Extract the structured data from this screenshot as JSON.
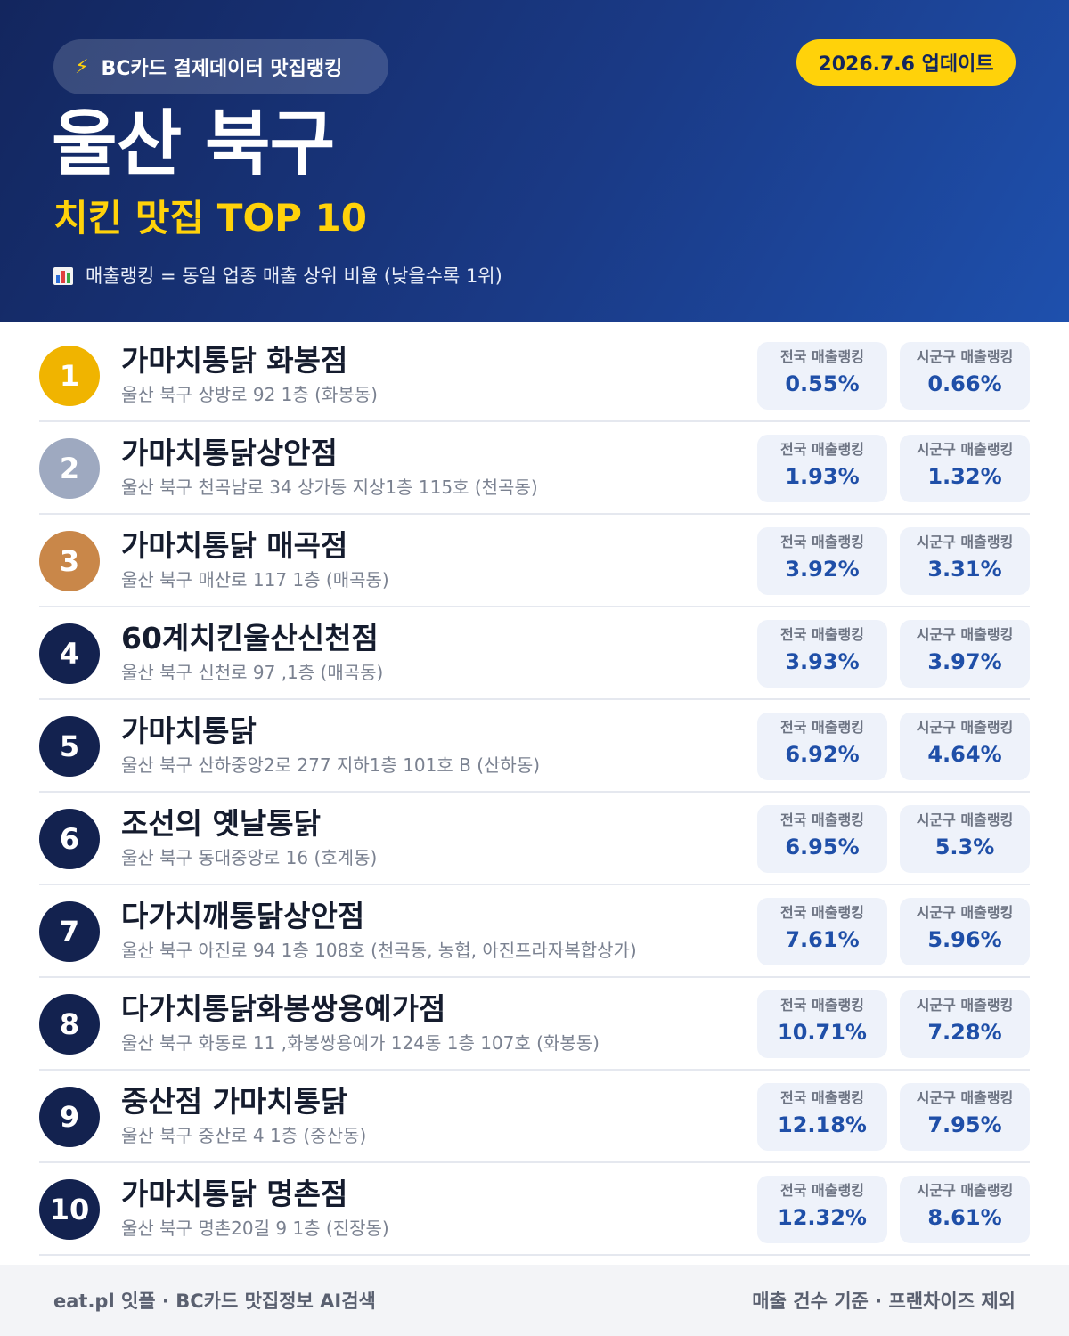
{
  "header": {
    "source_icon": "lightning-bolt-icon",
    "source_label": "BC카드 결제데이터 맛집랭킹",
    "update_label": "2026.7.6 업데이트",
    "region": "울산 북구",
    "subtitle": "치킨 맛집 TOP 10",
    "legend_icon": "bar-chart-icon",
    "legend_text": "매출랭킹 = 동일 업종 매출 상위 비율 (낮을수록 1위)"
  },
  "colors": {
    "header_bg": "#1a3a86",
    "accent_yellow": "#ffd20a",
    "gold": "#f0b400",
    "silver": "#9ea9c0",
    "bronze": "#c98749",
    "navy": "#13224f",
    "value_blue": "#1f4fa8"
  },
  "stat_labels": {
    "national": "전국 매출랭킹",
    "local": "시군구 매출랭킹"
  },
  "rows": [
    {
      "rank": "1",
      "medal": "gold",
      "name": "가마치통닭 화봉점",
      "address": "울산 북구 상방로 92 1층 (화봉동)",
      "national": "0.55%",
      "local": "0.66%"
    },
    {
      "rank": "2",
      "medal": "silver",
      "name": "가마치통닭상안점",
      "address": "울산 북구 천곡남로 34 상가동 지상1층 115호 (천곡동)",
      "national": "1.93%",
      "local": "1.32%"
    },
    {
      "rank": "3",
      "medal": "bronze",
      "name": "가마치통닭 매곡점",
      "address": "울산 북구 매산로 117 1층 (매곡동)",
      "national": "3.92%",
      "local": "3.31%"
    },
    {
      "rank": "4",
      "medal": "navy",
      "name": "60계치킨울산신천점",
      "address": "울산 북구 신천로 97 ,1층 (매곡동)",
      "national": "3.93%",
      "local": "3.97%"
    },
    {
      "rank": "5",
      "medal": "navy",
      "name": "가마치통닭",
      "address": "울산 북구 산하중앙2로 277 지하1층 101호 B (산하동)",
      "national": "6.92%",
      "local": "4.64%"
    },
    {
      "rank": "6",
      "medal": "navy",
      "name": "조선의 옛날통닭",
      "address": "울산 북구 동대중앙로 16 (호계동)",
      "national": "6.95%",
      "local": "5.3%"
    },
    {
      "rank": "7",
      "medal": "navy",
      "name": "다가치깨통닭상안점",
      "address": "울산 북구 아진로 94 1층 108호 (천곡동, 농협, 아진프라자복합상가)",
      "national": "7.61%",
      "local": "5.96%"
    },
    {
      "rank": "8",
      "medal": "navy",
      "name": "다가치통닭화봉쌍용예가점",
      "address": "울산 북구 화동로 11 ,화봉쌍용예가 124동 1층 107호 (화봉동)",
      "national": "10.71%",
      "local": "7.28%"
    },
    {
      "rank": "9",
      "medal": "navy",
      "name": "중산점 가마치통닭",
      "address": "울산 북구 중산로 4 1층 (중산동)",
      "national": "12.18%",
      "local": "7.95%"
    },
    {
      "rank": "10",
      "medal": "navy",
      "name": "가마치통닭 명촌점",
      "address": "울산 북구 명촌20길 9 1층 (진장동)",
      "national": "12.32%",
      "local": "8.61%"
    }
  ],
  "footer": {
    "left": "eat.pl 잇플 · BC카드 맛집정보 AI검색",
    "right": "매출 건수 기준 · 프랜차이즈 제외"
  }
}
